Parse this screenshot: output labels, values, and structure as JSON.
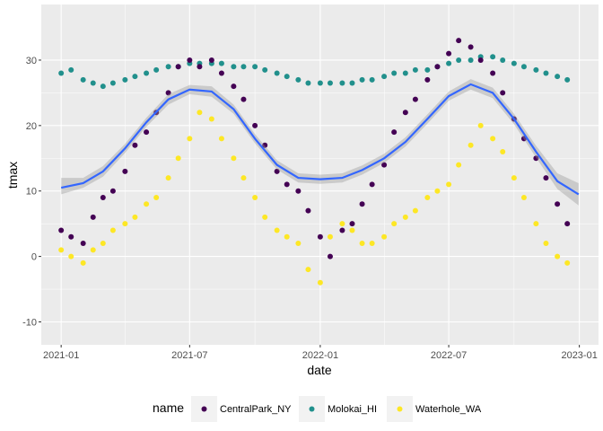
{
  "chart_data": {
    "type": "scatter",
    "xlabel": "date",
    "ylabel": "tmax",
    "x_ticks": [
      "2021-01",
      "2021-07",
      "2022-01",
      "2022-07",
      "2023-01"
    ],
    "y_ticks": [
      "-10",
      "0",
      "10",
      "20",
      "30"
    ],
    "xlim": [
      "2020-12-04",
      "2023-01-28"
    ],
    "ylim": [
      -13.5,
      38.5
    ],
    "grid": true,
    "legend": {
      "title": "name",
      "position": "bottom",
      "entries": [
        "CentralPark_NY",
        "Molokai_HI",
        "Waterhole_WA"
      ]
    },
    "colors": {
      "CentralPark_NY": "#440154",
      "Molokai_HI": "#21908C",
      "Waterhole_WA": "#FDE725",
      "smooth": "#3366FF",
      "ribbon": "#999999",
      "panel": "#EBEBEB"
    },
    "series": [
      {
        "name": "CentralPark_NY",
        "type": "scatter",
        "x": [
          "2021-01-01",
          "2021-01-15",
          "2021-02-01",
          "2021-02-15",
          "2021-03-01",
          "2021-03-15",
          "2021-04-01",
          "2021-04-15",
          "2021-05-01",
          "2021-05-15",
          "2021-06-01",
          "2021-06-15",
          "2021-07-01",
          "2021-07-15",
          "2021-08-01",
          "2021-08-15",
          "2021-09-01",
          "2021-09-15",
          "2021-10-01",
          "2021-10-15",
          "2021-11-01",
          "2021-11-15",
          "2021-12-01",
          "2021-12-15",
          "2022-01-01",
          "2022-01-15",
          "2022-02-01",
          "2022-02-15",
          "2022-03-01",
          "2022-03-15",
          "2022-04-01",
          "2022-04-15",
          "2022-05-01",
          "2022-05-15",
          "2022-06-01",
          "2022-06-15",
          "2022-07-01",
          "2022-07-15",
          "2022-08-01",
          "2022-08-15",
          "2022-09-01",
          "2022-09-15",
          "2022-10-01",
          "2022-10-15",
          "2022-11-01",
          "2022-11-15",
          "2022-12-01",
          "2022-12-15"
        ],
        "y": [
          4,
          3,
          2,
          6,
          9,
          10,
          13,
          17,
          19,
          22,
          25,
          29,
          30,
          29,
          30,
          28,
          26,
          24,
          20,
          17,
          13,
          11,
          10,
          7,
          3,
          0,
          4,
          5,
          8,
          11,
          14,
          19,
          22,
          24,
          27,
          29,
          31,
          33,
          32,
          30,
          28,
          25,
          21,
          18,
          15,
          12,
          8,
          5
        ]
      },
      {
        "name": "Molokai_HI",
        "type": "scatter",
        "x": [
          "2021-01-01",
          "2021-01-15",
          "2021-02-01",
          "2021-02-15",
          "2021-03-01",
          "2021-03-15",
          "2021-04-01",
          "2021-04-15",
          "2021-05-01",
          "2021-05-15",
          "2021-06-01",
          "2021-06-15",
          "2021-07-01",
          "2021-07-15",
          "2021-08-01",
          "2021-08-15",
          "2021-09-01",
          "2021-09-15",
          "2021-10-01",
          "2021-10-15",
          "2021-11-01",
          "2021-11-15",
          "2021-12-01",
          "2021-12-15",
          "2022-01-01",
          "2022-01-15",
          "2022-02-01",
          "2022-02-15",
          "2022-03-01",
          "2022-03-15",
          "2022-04-01",
          "2022-04-15",
          "2022-05-01",
          "2022-05-15",
          "2022-06-01",
          "2022-06-15",
          "2022-07-01",
          "2022-07-15",
          "2022-08-01",
          "2022-08-15",
          "2022-09-01",
          "2022-09-15",
          "2022-10-01",
          "2022-10-15",
          "2022-11-01",
          "2022-11-15",
          "2022-12-01",
          "2022-12-15"
        ],
        "y": [
          28,
          28.5,
          27,
          26.5,
          26,
          26.5,
          27,
          27.5,
          28,
          28.5,
          29,
          29,
          29.5,
          29.5,
          29.5,
          29.5,
          29,
          29,
          29,
          28.5,
          28,
          27.5,
          27,
          26.5,
          26.5,
          26.5,
          26.5,
          26.5,
          27,
          27,
          27.5,
          28,
          28,
          28.5,
          28.5,
          29,
          29.5,
          30,
          30,
          30.5,
          30.5,
          30,
          29.5,
          29,
          28.5,
          28,
          27.5,
          27
        ]
      },
      {
        "name": "Waterhole_WA",
        "type": "scatter",
        "x": [
          "2021-01-01",
          "2021-01-15",
          "2021-02-01",
          "2021-02-15",
          "2021-03-01",
          "2021-03-15",
          "2021-04-01",
          "2021-04-15",
          "2021-05-01",
          "2021-05-15",
          "2021-06-01",
          "2021-06-15",
          "2021-07-01",
          "2021-07-15",
          "2021-08-01",
          "2021-08-15",
          "2021-09-01",
          "2021-09-15",
          "2021-10-01",
          "2021-10-15",
          "2021-11-01",
          "2021-11-15",
          "2021-12-01",
          "2021-12-15",
          "2022-01-01",
          "2022-01-15",
          "2022-02-01",
          "2022-02-15",
          "2022-03-01",
          "2022-03-15",
          "2022-04-01",
          "2022-04-15",
          "2022-05-01",
          "2022-05-15",
          "2022-06-01",
          "2022-06-15",
          "2022-07-01",
          "2022-07-15",
          "2022-08-01",
          "2022-08-15",
          "2022-09-01",
          "2022-09-15",
          "2022-10-01",
          "2022-10-15",
          "2022-11-01",
          "2022-11-15",
          "2022-12-01",
          "2022-12-15"
        ],
        "y": [
          1,
          0,
          -1,
          1,
          2,
          4,
          5,
          6,
          8,
          9,
          12,
          15,
          18,
          22,
          21,
          18,
          15,
          12,
          9,
          6,
          4,
          3,
          2,
          -2,
          -4,
          3,
          5,
          4,
          2,
          2,
          3,
          5,
          6,
          7,
          9,
          10,
          11,
          14,
          17,
          20,
          18,
          16,
          12,
          9,
          5,
          2,
          0,
          -1
        ]
      },
      {
        "name": "smooth",
        "type": "line",
        "x": [
          "2021-01-01",
          "2021-02-01",
          "2021-03-01",
          "2021-04-01",
          "2021-05-01",
          "2021-06-01",
          "2021-07-01",
          "2021-08-01",
          "2021-09-01",
          "2021-10-01",
          "2021-11-01",
          "2021-12-01",
          "2022-01-01",
          "2022-02-01",
          "2022-03-01",
          "2022-04-01",
          "2022-05-01",
          "2022-06-01",
          "2022-07-01",
          "2022-08-01",
          "2022-09-01",
          "2022-10-01",
          "2022-11-01",
          "2022-12-01",
          "2022-12-31"
        ],
        "y": [
          10.5,
          11.2,
          13.0,
          16.5,
          20.5,
          24.0,
          25.5,
          25.2,
          22.5,
          18.0,
          14.0,
          12.0,
          11.8,
          12.0,
          13.2,
          15.0,
          17.5,
          21.0,
          24.5,
          26.3,
          25.0,
          21.0,
          16.0,
          11.5,
          9.5
        ],
        "lower": [
          9.5,
          10.5,
          12.2,
          15.8,
          19.8,
          23.2,
          24.8,
          24.4,
          21.8,
          17.3,
          13.3,
          11.3,
          11.1,
          11.3,
          12.5,
          14.3,
          16.8,
          20.3,
          23.8,
          25.5,
          24.2,
          20.2,
          15.1,
          10.3,
          7.8
        ],
        "upper": [
          12.0,
          12.0,
          13.8,
          17.2,
          21.2,
          24.8,
          26.2,
          26.0,
          23.2,
          18.7,
          14.7,
          12.7,
          12.5,
          12.7,
          13.9,
          15.7,
          18.2,
          21.7,
          25.2,
          27.1,
          25.8,
          21.8,
          16.9,
          12.7,
          11.2
        ]
      }
    ]
  }
}
